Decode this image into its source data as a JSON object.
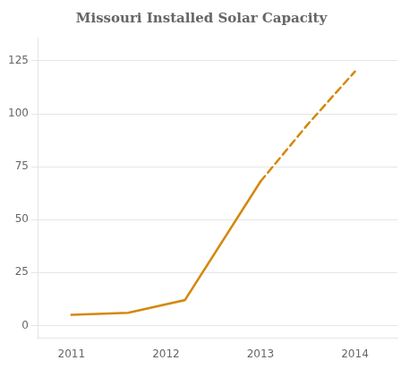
{
  "chart_data": {
    "type": "line",
    "title": "Missouri Installed Solar Capacity",
    "series": [
      {
        "x": [
          2011,
          2011.6,
          2012.2,
          2013
        ],
        "values": [
          5,
          6,
          12,
          68
        ],
        "color": "#D4880A",
        "line_style": "solid"
      },
      {
        "x": [
          2013,
          2013.5,
          2014
        ],
        "values": [
          68,
          95,
          120
        ],
        "color": "#D4880A",
        "line_style": "dashed"
      }
    ],
    "xlim": [
      2010.65,
      2014.45
    ],
    "xticks": [
      2011,
      2012,
      2013,
      2014
    ],
    "ylim": [
      -6,
      136
    ],
    "yticks": [
      0,
      25,
      50,
      75,
      100,
      125
    ],
    "grid": "y"
  }
}
